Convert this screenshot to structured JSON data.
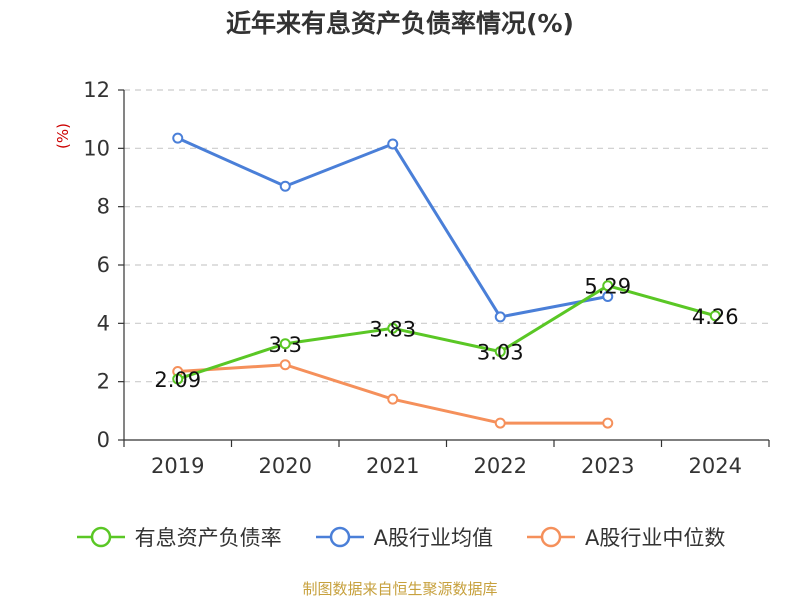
{
  "colors": {
    "title": "#333333",
    "axis": "#333333",
    "grid": "#cccccc",
    "unit": "#cc0000",
    "source": "#c7a13e"
  },
  "source_text": "制图数据来自恒生聚源数据库",
  "chart_data": {
    "type": "line",
    "title": "近年来有息资产负债率情况(%)",
    "xlabel": "",
    "ylabel": "(%)",
    "categories": [
      "2019",
      "2020",
      "2021",
      "2022",
      "2023",
      "2024"
    ],
    "ylim": [
      0,
      12
    ],
    "yticks": [
      0,
      2,
      4,
      6,
      8,
      10,
      12
    ],
    "grid": true,
    "legend_position": "bottom",
    "series": [
      {
        "name": "有息资产负债率",
        "color": "#5ac725",
        "values": [
          2.09,
          3.3,
          3.83,
          3.03,
          5.29,
          4.26
        ],
        "data_labels": [
          "2.09",
          "3.3",
          "3.83",
          "3.03",
          "5.29",
          "4.26"
        ]
      },
      {
        "name": "A股行业均值",
        "color": "#4a7fd8",
        "values": [
          10.35,
          8.7,
          10.15,
          4.22,
          4.92,
          null
        ]
      },
      {
        "name": "A股行业中位数",
        "color": "#f5905b",
        "values": [
          2.35,
          2.58,
          1.4,
          0.58,
          0.58,
          null
        ]
      }
    ]
  }
}
